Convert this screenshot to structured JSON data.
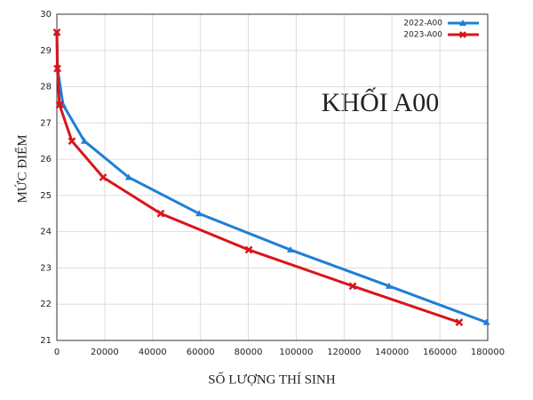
{
  "chart_data": {
    "type": "line",
    "annotation": "KHỐI A00",
    "xlabel": "SỐ LƯỢNG THÍ SINH",
    "ylabel": "MỨC ĐIỂM",
    "series": [
      {
        "name": "2022-A00",
        "color": "#1f7fd6",
        "marker": "triangle",
        "x": [
          0,
          300,
          2600,
          11500,
          30000,
          59400,
          97600,
          138800,
          179500
        ],
        "values": [
          29.5,
          28.5,
          27.5,
          26.5,
          25.5,
          24.5,
          23.5,
          22.5,
          21.5
        ]
      },
      {
        "name": "2023-A00",
        "color": "#d9151b",
        "marker": "x",
        "x": [
          0,
          200,
          1100,
          6300,
          19300,
          43400,
          80200,
          123600,
          168100
        ],
        "values": [
          29.5,
          28.5,
          27.5,
          26.5,
          25.5,
          24.5,
          23.5,
          22.5,
          21.5
        ]
      }
    ],
    "xlim": [
      0,
      180000
    ],
    "ylim": [
      21,
      30
    ],
    "xticks": [
      0,
      20000,
      40000,
      60000,
      80000,
      100000,
      120000,
      140000,
      160000,
      180000
    ],
    "yticks": [
      21,
      22,
      23,
      24,
      25,
      26,
      27,
      28,
      29,
      30
    ],
    "grid": true,
    "legend": "top-right"
  }
}
